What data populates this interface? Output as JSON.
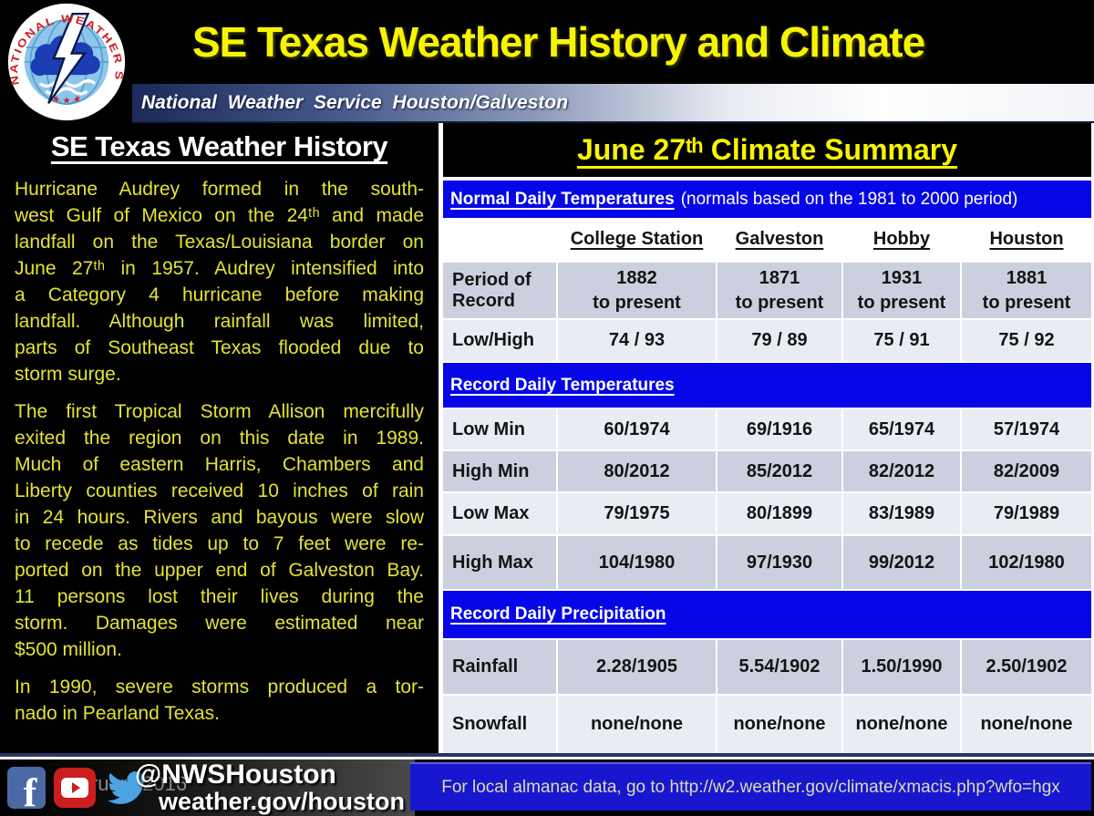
{
  "header": {
    "title": "SE Texas Weather History and Climate",
    "subtitle": "National Weather Service Houston/Galveston",
    "logo": {
      "ring_text": "NATIONAL WEATHER SERVICE",
      "stars": "★ ★ ★"
    }
  },
  "history": {
    "heading": "SE Texas Weather History",
    "paragraphs": [
      "Hurricane Audrey formed in the south-\nwest Gulf of Mexico on the 24ᵗʰ and made\nlandfall on the Texas/Louisiana border on\nJune 27ᵗʰ in 1957.  Audrey intensified into\na Category 4 hurricane before making\nlandfall.  Although rainfall was limited,\nparts of Southeast Texas flooded due to\nstorm surge.",
      "The first Tropical Storm Allison mercifully\nexited the region on this date in 1989.\nMuch of eastern Harris, Chambers and\nLiberty counties received 10 inches of rain\nin 24 hours.  Rivers and bayous were slow\nto recede as tides up to 7 feet were re-\nported on the upper end of Galveston Bay.\n11 persons lost their lives during the\nstorm.  Damages were estimated near\n$500 million.",
      "In 1990, severe storms produced a tor-\nnado in Pearland Texas."
    ]
  },
  "climate": {
    "title": "June 27ᵗʰ Climate Summary",
    "normals_header": {
      "title": "Normal Daily Temperatures",
      "note": "(normals based on the 1981 to 2000 period)"
    },
    "columns": [
      "College Station",
      "Galveston",
      "Hobby",
      "Houston"
    ],
    "period_row": {
      "label": "Period of Record",
      "values": [
        "1882\nto present",
        "1871\nto present",
        "1931\nto present",
        "1881\nto present"
      ]
    },
    "low_high_row": {
      "label": "Low/High",
      "values": [
        "74 / 93",
        "79 / 89",
        "75 / 91",
        "75 / 92"
      ]
    },
    "record_temps_header": "Record Daily Temperatures",
    "low_min_row": {
      "label": "Low Min",
      "values": [
        "60/1974",
        "69/1916",
        "65/1974",
        "57/1974"
      ]
    },
    "high_min_row": {
      "label": "High Min",
      "values": [
        "80/2012",
        "85/2012",
        "82/2012",
        "82/2009"
      ]
    },
    "low_max_row": {
      "label": "Low Max",
      "values": [
        "79/1975",
        "80/1899",
        "83/1989",
        "79/1989"
      ]
    },
    "high_max_row": {
      "label": "High Max",
      "values": [
        "104/1980",
        "97/1930",
        "99/2012",
        "102/1980"
      ]
    },
    "precip_header": "Record Daily Precipitation",
    "rainfall_row": {
      "label": "Rainfall",
      "values": [
        "2.28/1905",
        "5.54/1902",
        "1.50/1990",
        "2.50/1902"
      ]
    },
    "snowfall_row": {
      "label": "Snowfall",
      "values": [
        "none/none",
        "none/none",
        "none/none",
        "none/none"
      ]
    }
  },
  "footer": {
    "date": "February 2016",
    "twitter_handle": "@NWSHouston",
    "website": "weather.gov/houston",
    "almanac_note": "For local almanac data, go to http://w2.weather.gov/climate/xmacis.php?wfo=hgx"
  },
  "colors": {
    "accent_yellow": "#f7f400",
    "body_yellow": "#e3e335",
    "section_blue": "#0606e8",
    "row_dark": "#ccd0de",
    "row_light": "#eaecf4",
    "footer_box_blue": "#1717d0",
    "facebook_blue": "#4a69a5",
    "youtube_red": "#cc1d1f",
    "twitter_blue": "#4ba3e3"
  }
}
